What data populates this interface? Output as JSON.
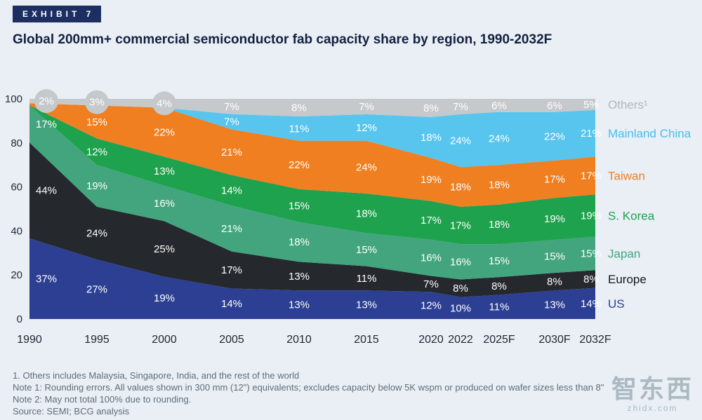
{
  "exhibit": {
    "label": "EXHIBIT 7"
  },
  "title": "Global 200mm+ commercial semiconductor fab capacity share by region, 1990-2032F",
  "chart_data": {
    "type": "area",
    "stacked": true,
    "unit": "%",
    "title": "Global 200mm+ commercial semiconductor fab capacity share by region, 1990-2032F",
    "categories": [
      "1990",
      "1995",
      "2000",
      "2005",
      "2010",
      "2015",
      "2020",
      "2022",
      "2025F",
      "2030F",
      "2032F"
    ],
    "yticks": [
      0,
      20,
      40,
      60,
      80,
      100
    ],
    "ylim": [
      0,
      100
    ],
    "grid": false,
    "legend_position": "right",
    "series": [
      {
        "name": "US",
        "color": "#2c3f93",
        "values": [
          37,
          27,
          19,
          14,
          13,
          13,
          12,
          10,
          11,
          13,
          14
        ],
        "labels": [
          "37%",
          "27%",
          "19%",
          "14%",
          "13%",
          "13%",
          "12%",
          "10%",
          "11%",
          "13%",
          "14%"
        ]
      },
      {
        "name": "Europe",
        "color": "#25282d",
        "legend_color": "#14181d",
        "values": [
          44,
          24,
          25,
          17,
          13,
          11,
          7,
          8,
          8,
          8,
          8
        ],
        "labels": [
          "44%",
          "24%",
          "25%",
          "17%",
          "13%",
          "11%",
          "7%",
          "8%",
          "8%",
          "8%",
          "8%"
        ]
      },
      {
        "name": "Japan",
        "color": "#43a57e",
        "values": [
          17,
          19,
          16,
          21,
          18,
          15,
          16,
          16,
          15,
          15,
          15
        ],
        "labels": [
          "17%",
          "19%",
          "16%",
          "21%",
          "18%",
          "15%",
          "16%",
          "16%",
          "15%",
          "15%",
          "15%"
        ]
      },
      {
        "name": "S. Korea",
        "color": "#1ea24d",
        "values": [
          0,
          12,
          13,
          14,
          15,
          18,
          17,
          17,
          18,
          19,
          19
        ],
        "labels": [
          "",
          "12%",
          "13%",
          "14%",
          "15%",
          "18%",
          "17%",
          "17%",
          "18%",
          "19%",
          "19%"
        ]
      },
      {
        "name": "Taiwan",
        "color": "#ef7f21",
        "values": [
          1,
          15,
          22,
          21,
          22,
          24,
          19,
          18,
          18,
          17,
          17
        ],
        "labels": [
          "",
          "15%",
          "22%",
          "21%",
          "22%",
          "24%",
          "19%",
          "18%",
          "18%",
          "17%",
          "17%"
        ]
      },
      {
        "name": "Mainland China",
        "color": "#57c5ed",
        "legend_color": "#46bfec",
        "values": [
          0,
          0,
          0,
          7,
          11,
          12,
          18,
          24,
          24,
          22,
          21
        ],
        "labels": [
          "",
          "",
          "",
          "7%",
          "11%",
          "12%",
          "18%",
          "24%",
          "24%",
          "22%",
          "21%"
        ]
      },
      {
        "name": "Others",
        "legend_label": "Others¹",
        "color": "#c5c9cb",
        "legend_color": "#b2b6b9",
        "values": [
          2,
          3,
          4,
          7,
          8,
          7,
          8,
          7,
          6,
          6,
          5
        ],
        "labels": [
          "2%",
          "3%",
          "4%",
          "7%",
          "8%",
          "7%",
          "8%",
          "7%",
          "6%",
          "6%",
          "5%"
        ],
        "circled_label_indices": [
          0,
          1,
          2
        ]
      }
    ]
  },
  "footnotes": [
    "1. Others includes Malaysia, Singapore, India, and the rest of the world",
    "Note 1: Rounding errors. All values shown in 300 mm (12\") equivalents; excludes capacity below 5K wspm or produced on wafer sizes less than 8\"",
    "Note 2: May not total 100% due to rounding.",
    "Source: SEMI; BCG analysis"
  ],
  "watermark": {
    "text": "智东西",
    "subtext": "zhidx.com"
  }
}
